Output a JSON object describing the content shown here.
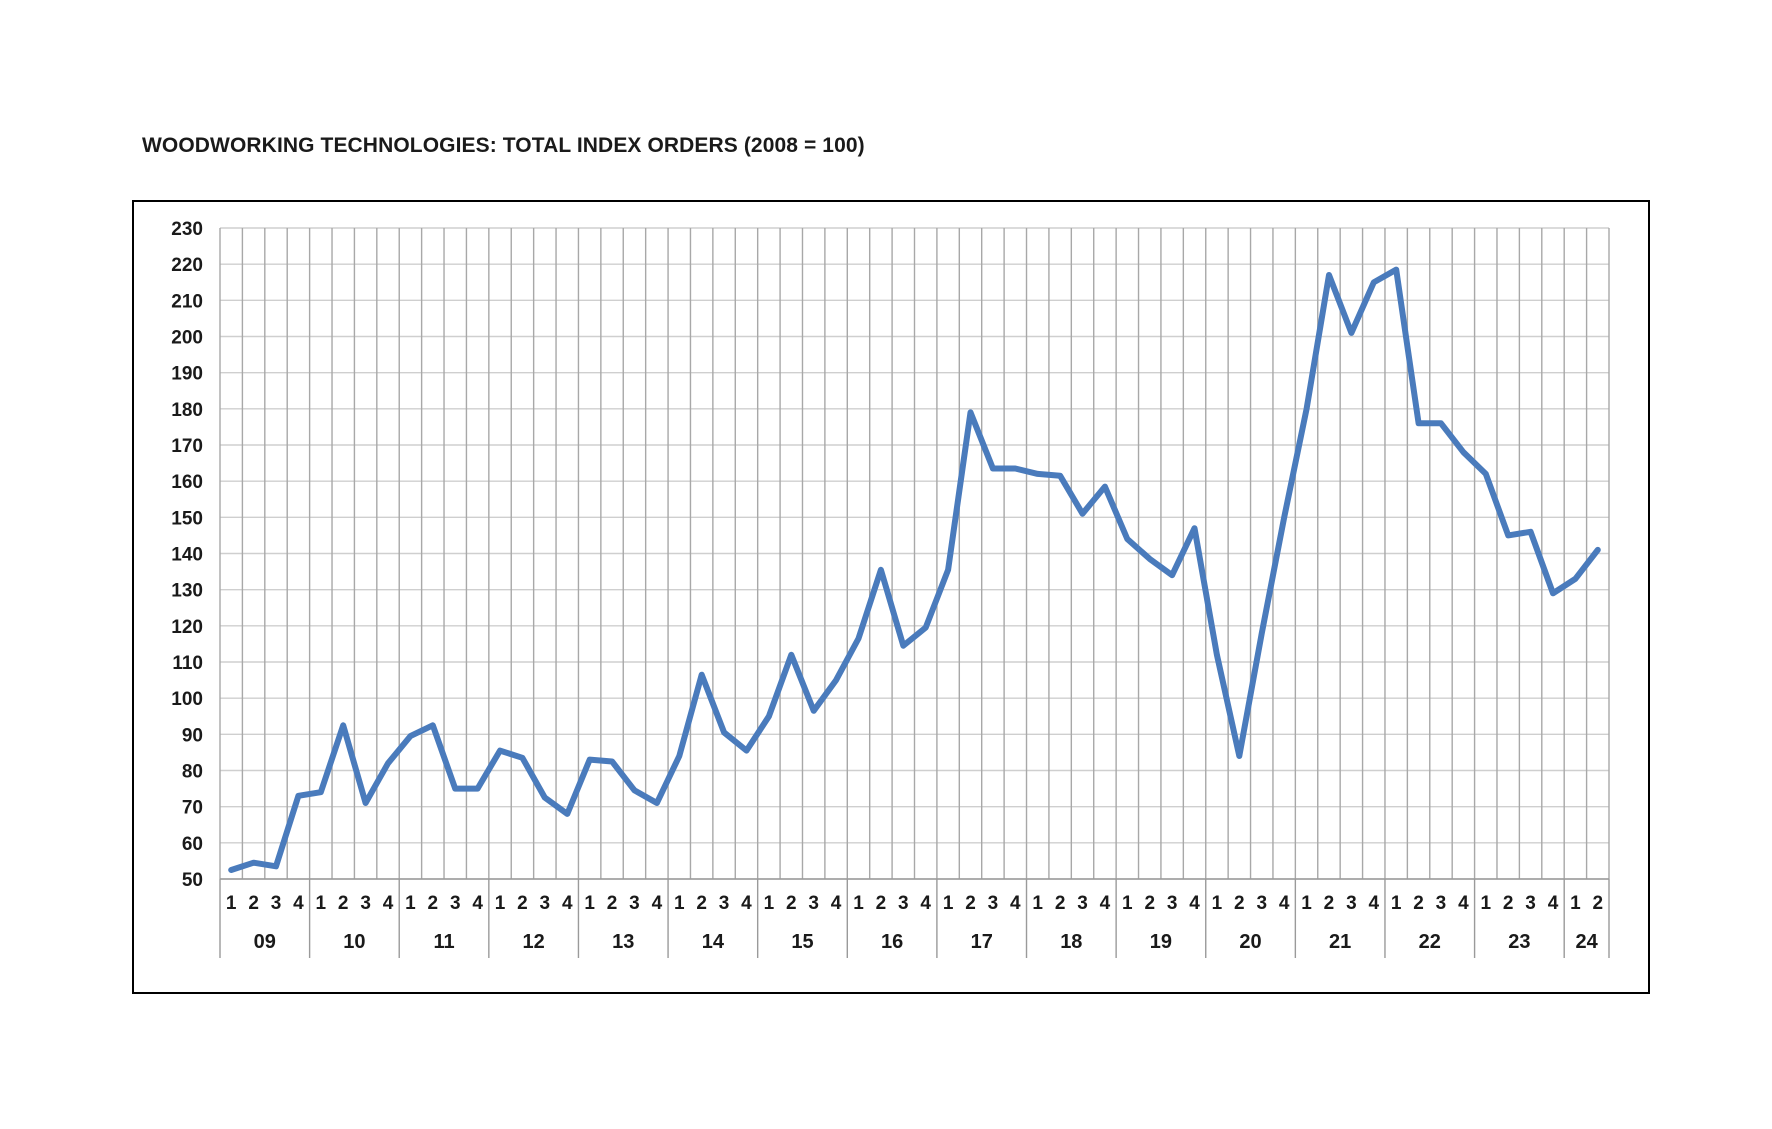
{
  "chart_data": {
    "type": "line",
    "title": "WOODWORKING TECHNOLOGIES: TOTAL INDEX ORDERS (2008 = 100)",
    "xlabel": "",
    "ylabel": "",
    "ylim": [
      50,
      230
    ],
    "yticks": [
      50,
      60,
      70,
      80,
      90,
      100,
      110,
      120,
      130,
      140,
      150,
      160,
      170,
      180,
      190,
      200,
      210,
      220,
      230
    ],
    "grid": true,
    "legend": "none",
    "line_color": "#4a7bbc",
    "years": [
      {
        "label": "09",
        "quarters": [
          "1",
          "2",
          "3",
          "4"
        ]
      },
      {
        "label": "10",
        "quarters": [
          "1",
          "2",
          "3",
          "4"
        ]
      },
      {
        "label": "11",
        "quarters": [
          "1",
          "2",
          "3",
          "4"
        ]
      },
      {
        "label": "12",
        "quarters": [
          "1",
          "2",
          "3",
          "4"
        ]
      },
      {
        "label": "13",
        "quarters": [
          "1",
          "2",
          "3",
          "4"
        ]
      },
      {
        "label": "14",
        "quarters": [
          "1",
          "2",
          "3",
          "4"
        ]
      },
      {
        "label": "15",
        "quarters": [
          "1",
          "2",
          "3",
          "4"
        ]
      },
      {
        "label": "16",
        "quarters": [
          "1",
          "2",
          "3",
          "4"
        ]
      },
      {
        "label": "17",
        "quarters": [
          "1",
          "2",
          "3",
          "4"
        ]
      },
      {
        "label": "18",
        "quarters": [
          "1",
          "2",
          "3",
          "4"
        ]
      },
      {
        "label": "19",
        "quarters": [
          "1",
          "2",
          "3",
          "4"
        ]
      },
      {
        "label": "20",
        "quarters": [
          "1",
          "2",
          "3",
          "4"
        ]
      },
      {
        "label": "21",
        "quarters": [
          "1",
          "2",
          "3",
          "4"
        ]
      },
      {
        "label": "22",
        "quarters": [
          "1",
          "2",
          "3",
          "4"
        ]
      },
      {
        "label": "23",
        "quarters": [
          "1",
          "2",
          "3",
          "4"
        ]
      },
      {
        "label": "24",
        "quarters": [
          "1",
          "2"
        ]
      }
    ],
    "series": [
      {
        "values": [
          52.5,
          54.5,
          53.5,
          73,
          74,
          92.5,
          71,
          82,
          89.5,
          92.5,
          75,
          75,
          85.5,
          83.5,
          72.5,
          68,
          83,
          82.5,
          74.5,
          71,
          84,
          106.5,
          90.5,
          85.5,
          95,
          112,
          96.5,
          105,
          116.5,
          135.5,
          114.5,
          119.5,
          135.5,
          179,
          163.5,
          163.5,
          162,
          161.5,
          151,
          158.5,
          144,
          138.5,
          134,
          147,
          112,
          84,
          118,
          150,
          180,
          217,
          201,
          215,
          218.5,
          176,
          176,
          168,
          162,
          145,
          146,
          129,
          133,
          141
        ]
      }
    ]
  }
}
